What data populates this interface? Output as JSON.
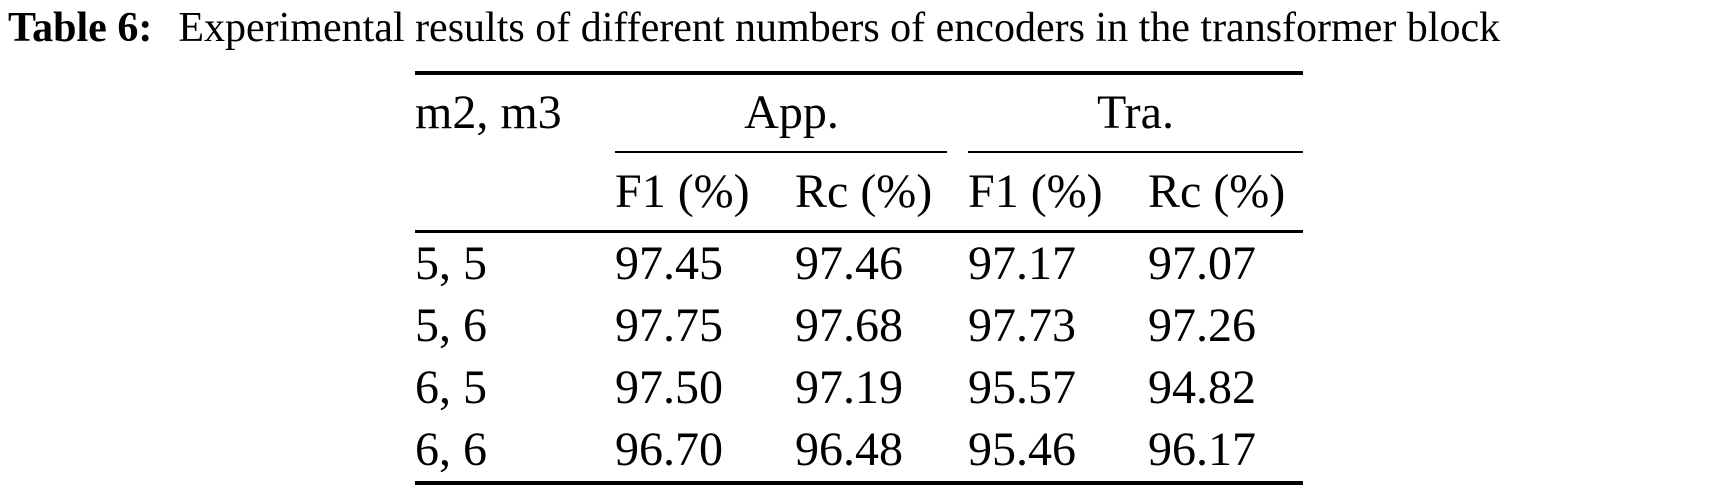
{
  "caption": {
    "label": "Table 6:",
    "text": "Experimental results of different numbers of encoders in the transformer block"
  },
  "table": {
    "row_header": "m2, m3",
    "groups": [
      {
        "label": "App.",
        "columns": [
          "F1 (%)",
          "Rc (%)"
        ]
      },
      {
        "label": "Tra.",
        "columns": [
          "F1 (%)",
          "Rc (%)"
        ]
      }
    ],
    "rows": [
      {
        "label": "5, 5",
        "values": [
          "97.45",
          "97.46",
          "97.17",
          "97.07"
        ]
      },
      {
        "label": "5, 6",
        "values": [
          "97.75",
          "97.68",
          "97.73",
          "97.26"
        ]
      },
      {
        "label": "6, 5",
        "values": [
          "97.50",
          "97.19",
          "95.57",
          "94.82"
        ]
      },
      {
        "label": "6, 6",
        "values": [
          "96.70",
          "96.48",
          "95.46",
          "96.17"
        ]
      }
    ]
  },
  "chart_data": {
    "type": "table",
    "title": "Table 6: Experimental results of different numbers of encoders in the transformer block",
    "columns": [
      "m2, m3",
      "App. F1 (%)",
      "App. Rc (%)",
      "Tra. F1 (%)",
      "Tra. Rc (%)"
    ],
    "rows": [
      [
        "5, 5",
        97.45,
        97.46,
        97.17,
        97.07
      ],
      [
        "5, 6",
        97.75,
        97.68,
        97.73,
        97.26
      ],
      [
        "6, 5",
        97.5,
        97.19,
        95.57,
        94.82
      ],
      [
        "6, 6",
        96.7,
        96.48,
        95.46,
        96.17
      ]
    ]
  }
}
